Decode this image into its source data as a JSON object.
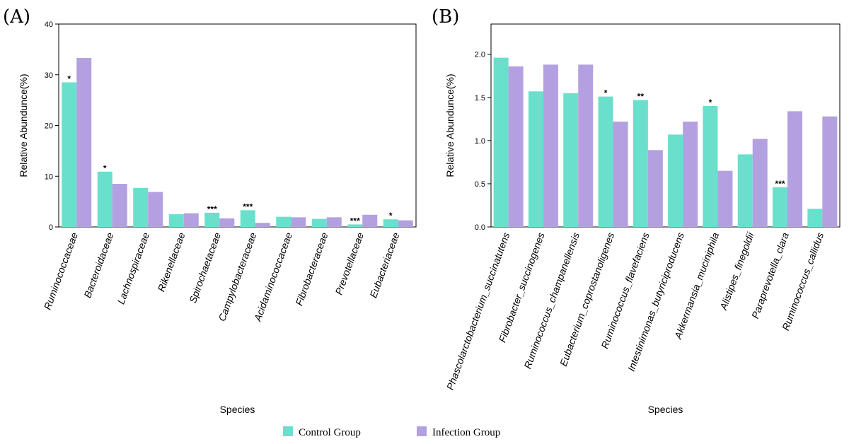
{
  "colors": {
    "control": "#6adfcc",
    "infection": "#b3a0e0"
  },
  "legend": {
    "control_label": "Control Group",
    "infection_label": "Infection Group"
  },
  "chart_data": [
    {
      "panel": "(A)",
      "type": "bar",
      "xlabel": "Species",
      "ylabel": "Relative Abundunce(%)",
      "ylim": [
        0,
        40
      ],
      "yticks": [
        0,
        10,
        20,
        30,
        40
      ],
      "ytick_labels": [
        "0",
        "10",
        "20",
        "30",
        "40"
      ],
      "categories": [
        "Ruminococcaceae",
        "Bacteroidaceae",
        "Lachnospiraceae",
        "Rikenellaceae",
        "Spirochaetaceae",
        "Campylobacteraceae",
        "Acidaminococcaceae",
        "Fibrobacteraceae",
        "Prevotellaceae",
        "Eubacteriaceae"
      ],
      "series": [
        {
          "name": "Control Group",
          "values": [
            28.5,
            10.9,
            7.7,
            2.5,
            2.8,
            3.3,
            2.0,
            1.6,
            0.5,
            1.5
          ]
        },
        {
          "name": "Infection Group",
          "values": [
            33.3,
            8.5,
            6.9,
            2.7,
            1.7,
            0.8,
            1.9,
            1.9,
            2.4,
            1.3
          ]
        }
      ],
      "significance": [
        "*",
        "*",
        "",
        "",
        "***",
        "***",
        "",
        "",
        "***",
        "*"
      ]
    },
    {
      "panel": "(B)",
      "type": "bar",
      "xlabel": "Species",
      "ylabel": "Relative Abundunce(%)",
      "ylim": [
        0,
        2.35
      ],
      "yticks": [
        0,
        0.5,
        1.0,
        1.5,
        2.0
      ],
      "ytick_labels": [
        "0.0",
        "0.5",
        "1.0",
        "1.5",
        "2.0"
      ],
      "categories": [
        "Phascolarctobacterium_succinatutens",
        "Fibrobacter_succinogenes",
        "Ruminococcus_champanellensis",
        "Eubacterium_coprostanoligenes",
        "Ruminococcus_flavefaciens",
        "Intestinimonas_butyriciproducens",
        "Akkermansia_muciniphila",
        "Alistipes_finegoldii",
        "Paraprevotella_clara",
        "Ruminococcus_callidus"
      ],
      "series": [
        {
          "name": "Control Group",
          "values": [
            1.96,
            1.57,
            1.55,
            1.51,
            1.47,
            1.07,
            1.4,
            0.84,
            0.46,
            0.21
          ]
        },
        {
          "name": "Infection Group",
          "values": [
            1.86,
            1.88,
            1.88,
            1.22,
            0.89,
            1.22,
            0.65,
            1.02,
            1.34,
            1.28
          ]
        }
      ],
      "significance": [
        "",
        "",
        "",
        "*",
        "**",
        "",
        "*",
        "",
        "***",
        ""
      ]
    }
  ]
}
